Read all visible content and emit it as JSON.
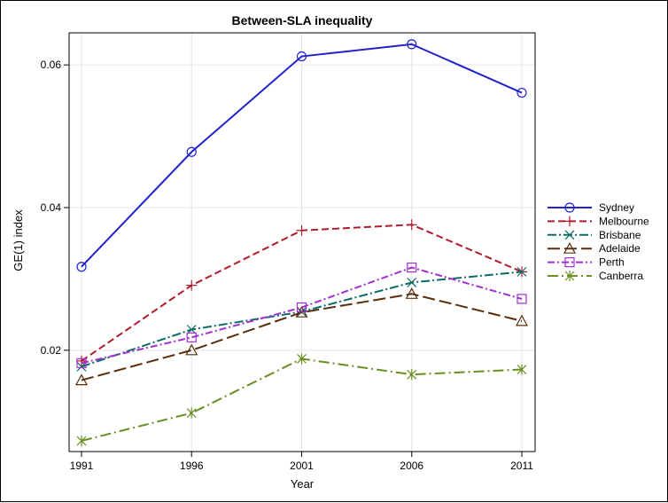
{
  "chart_data": {
    "type": "line",
    "title": "Between-SLA inequality",
    "xlabel": "Year",
    "ylabel": "GE(1) index",
    "x": [
      1991,
      1996,
      2001,
      2006,
      2011
    ],
    "x_ticks": [
      "1991",
      "1996",
      "2001",
      "2006",
      "2011"
    ],
    "y_ticks": [
      "0.02",
      "0.04",
      "0.06"
    ],
    "xlim": [
      1991,
      2011
    ],
    "ylim": [
      0.0058,
      0.0645
    ],
    "grid": true,
    "legend_position": "right",
    "series": [
      {
        "name": "Sydney",
        "values": [
          0.0317,
          0.0478,
          0.0612,
          0.0629,
          0.0561
        ],
        "color": "#2222cc",
        "marker": "circle",
        "dash": "solid"
      },
      {
        "name": "Melbourne",
        "values": [
          0.0185,
          0.0291,
          0.0368,
          0.0376,
          0.031
        ],
        "color": "#b01c2e",
        "marker": "plus",
        "dash": "dash"
      },
      {
        "name": "Brisbane",
        "values": [
          0.0177,
          0.0229,
          0.0254,
          0.0295,
          0.031
        ],
        "color": "#0d6b67",
        "marker": "x",
        "dash": "dashdot"
      },
      {
        "name": "Adelaide",
        "values": [
          0.0158,
          0.02,
          0.0253,
          0.0279,
          0.0241
        ],
        "color": "#5a2e0a",
        "marker": "triangle",
        "dash": "longdash"
      },
      {
        "name": "Perth",
        "values": [
          0.0182,
          0.0218,
          0.026,
          0.0316,
          0.0272
        ],
        "color": "#a22fd3",
        "marker": "square",
        "dash": "dashdot2"
      },
      {
        "name": "Canberra",
        "values": [
          0.0073,
          0.0112,
          0.0188,
          0.0166,
          0.0173
        ],
        "color": "#6b8e23",
        "marker": "star",
        "dash": "dashdot3"
      }
    ]
  }
}
